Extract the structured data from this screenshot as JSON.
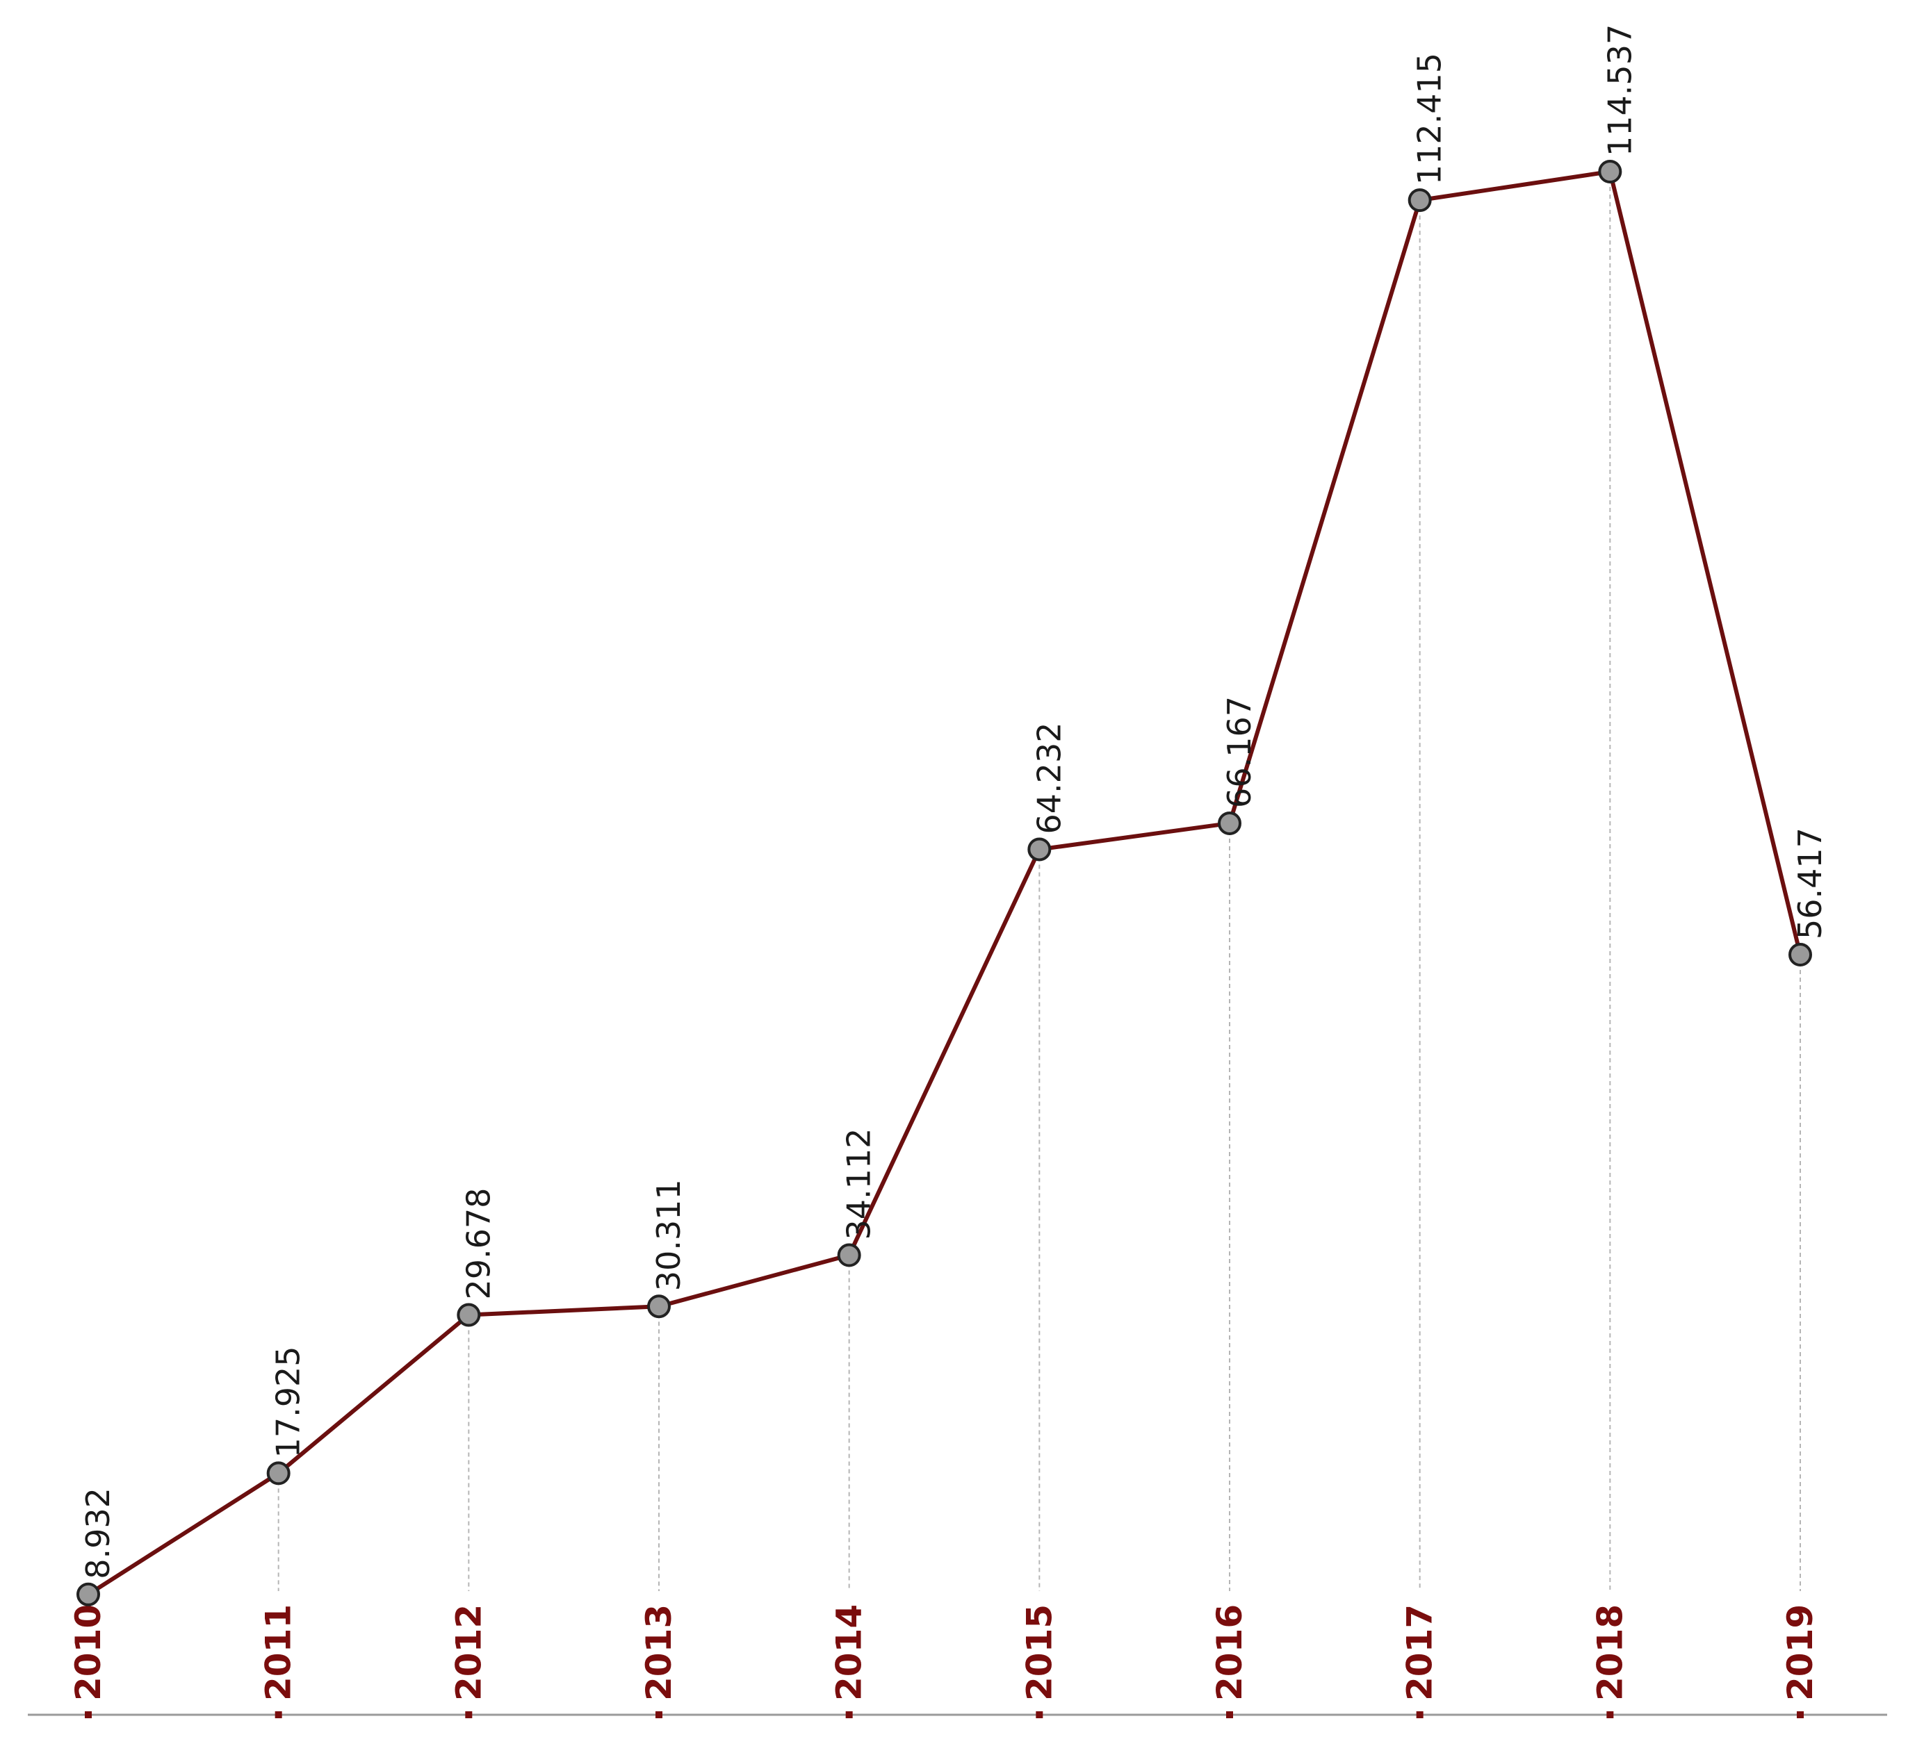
{
  "chart_data": {
    "type": "line",
    "categories": [
      "2010",
      "2011",
      "2012",
      "2013",
      "2014",
      "2015",
      "2016",
      "2017",
      "2018",
      "2019"
    ],
    "values": [
      8.932,
      17.925,
      29.678,
      30.311,
      34.112,
      64.232,
      66.167,
      112.415,
      114.537,
      56.417
    ],
    "color": "#6b0f0f"
  }
}
